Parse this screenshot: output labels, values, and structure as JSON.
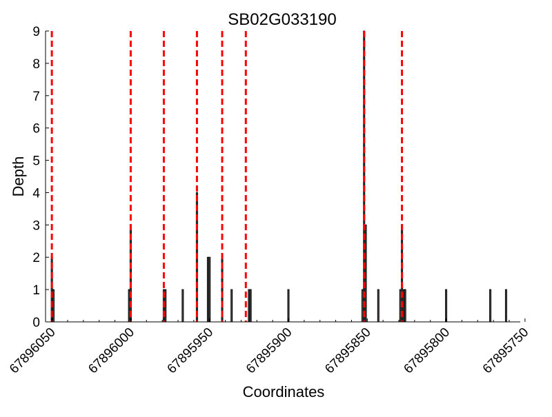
{
  "chart_data": {
    "type": "bar",
    "title": "SB02G033190",
    "xlabel": "Coordinates",
    "ylabel": "Depth",
    "x_axis_reversed": true,
    "xlim": [
      67896054,
      67895753
    ],
    "ylim": [
      0,
      9
    ],
    "yticks": [
      0,
      1,
      2,
      3,
      4,
      5,
      6,
      7,
      8,
      9
    ],
    "xticks": [
      67896050,
      67896000,
      67895950,
      67895900,
      67895850,
      67895800,
      67895750
    ],
    "xtick_labels": [
      "67896050",
      "67896000",
      "67895950",
      "67895900",
      "67895850",
      "67895800",
      "67895750"
    ],
    "grid": false,
    "bar_color": "#000000",
    "marker_color": "#ff0000",
    "bars": [
      {
        "x": 67896050,
        "y": 2
      },
      {
        "x": 67896049,
        "y": 1
      },
      {
        "x": 67896001,
        "y": 1
      },
      {
        "x": 67896000,
        "y": 3
      },
      {
        "x": 67895979,
        "y": 1
      },
      {
        "x": 67895978,
        "y": 1
      },
      {
        "x": 67895967,
        "y": 1
      },
      {
        "x": 67895958,
        "y": 4
      },
      {
        "x": 67895951,
        "y": 2
      },
      {
        "x": 67895950,
        "y": 2
      },
      {
        "x": 67895942,
        "y": 2
      },
      {
        "x": 67895936,
        "y": 1
      },
      {
        "x": 67895925,
        "y": 1
      },
      {
        "x": 67895924,
        "y": 1
      },
      {
        "x": 67895900,
        "y": 1
      },
      {
        "x": 67895853,
        "y": 1
      },
      {
        "x": 67895852,
        "y": 9
      },
      {
        "x": 67895851,
        "y": 3
      },
      {
        "x": 67895843,
        "y": 1
      },
      {
        "x": 67895829,
        "y": 1
      },
      {
        "x": 67895828,
        "y": 3
      },
      {
        "x": 67895827,
        "y": 1
      },
      {
        "x": 67895826,
        "y": 1
      },
      {
        "x": 67895800,
        "y": 1
      },
      {
        "x": 67895772,
        "y": 1
      },
      {
        "x": 67895762,
        "y": 1
      }
    ],
    "marker_lines": [
      67896050,
      67896000,
      67895979,
      67895958,
      67895942,
      67895927,
      67895852,
      67895828
    ]
  }
}
